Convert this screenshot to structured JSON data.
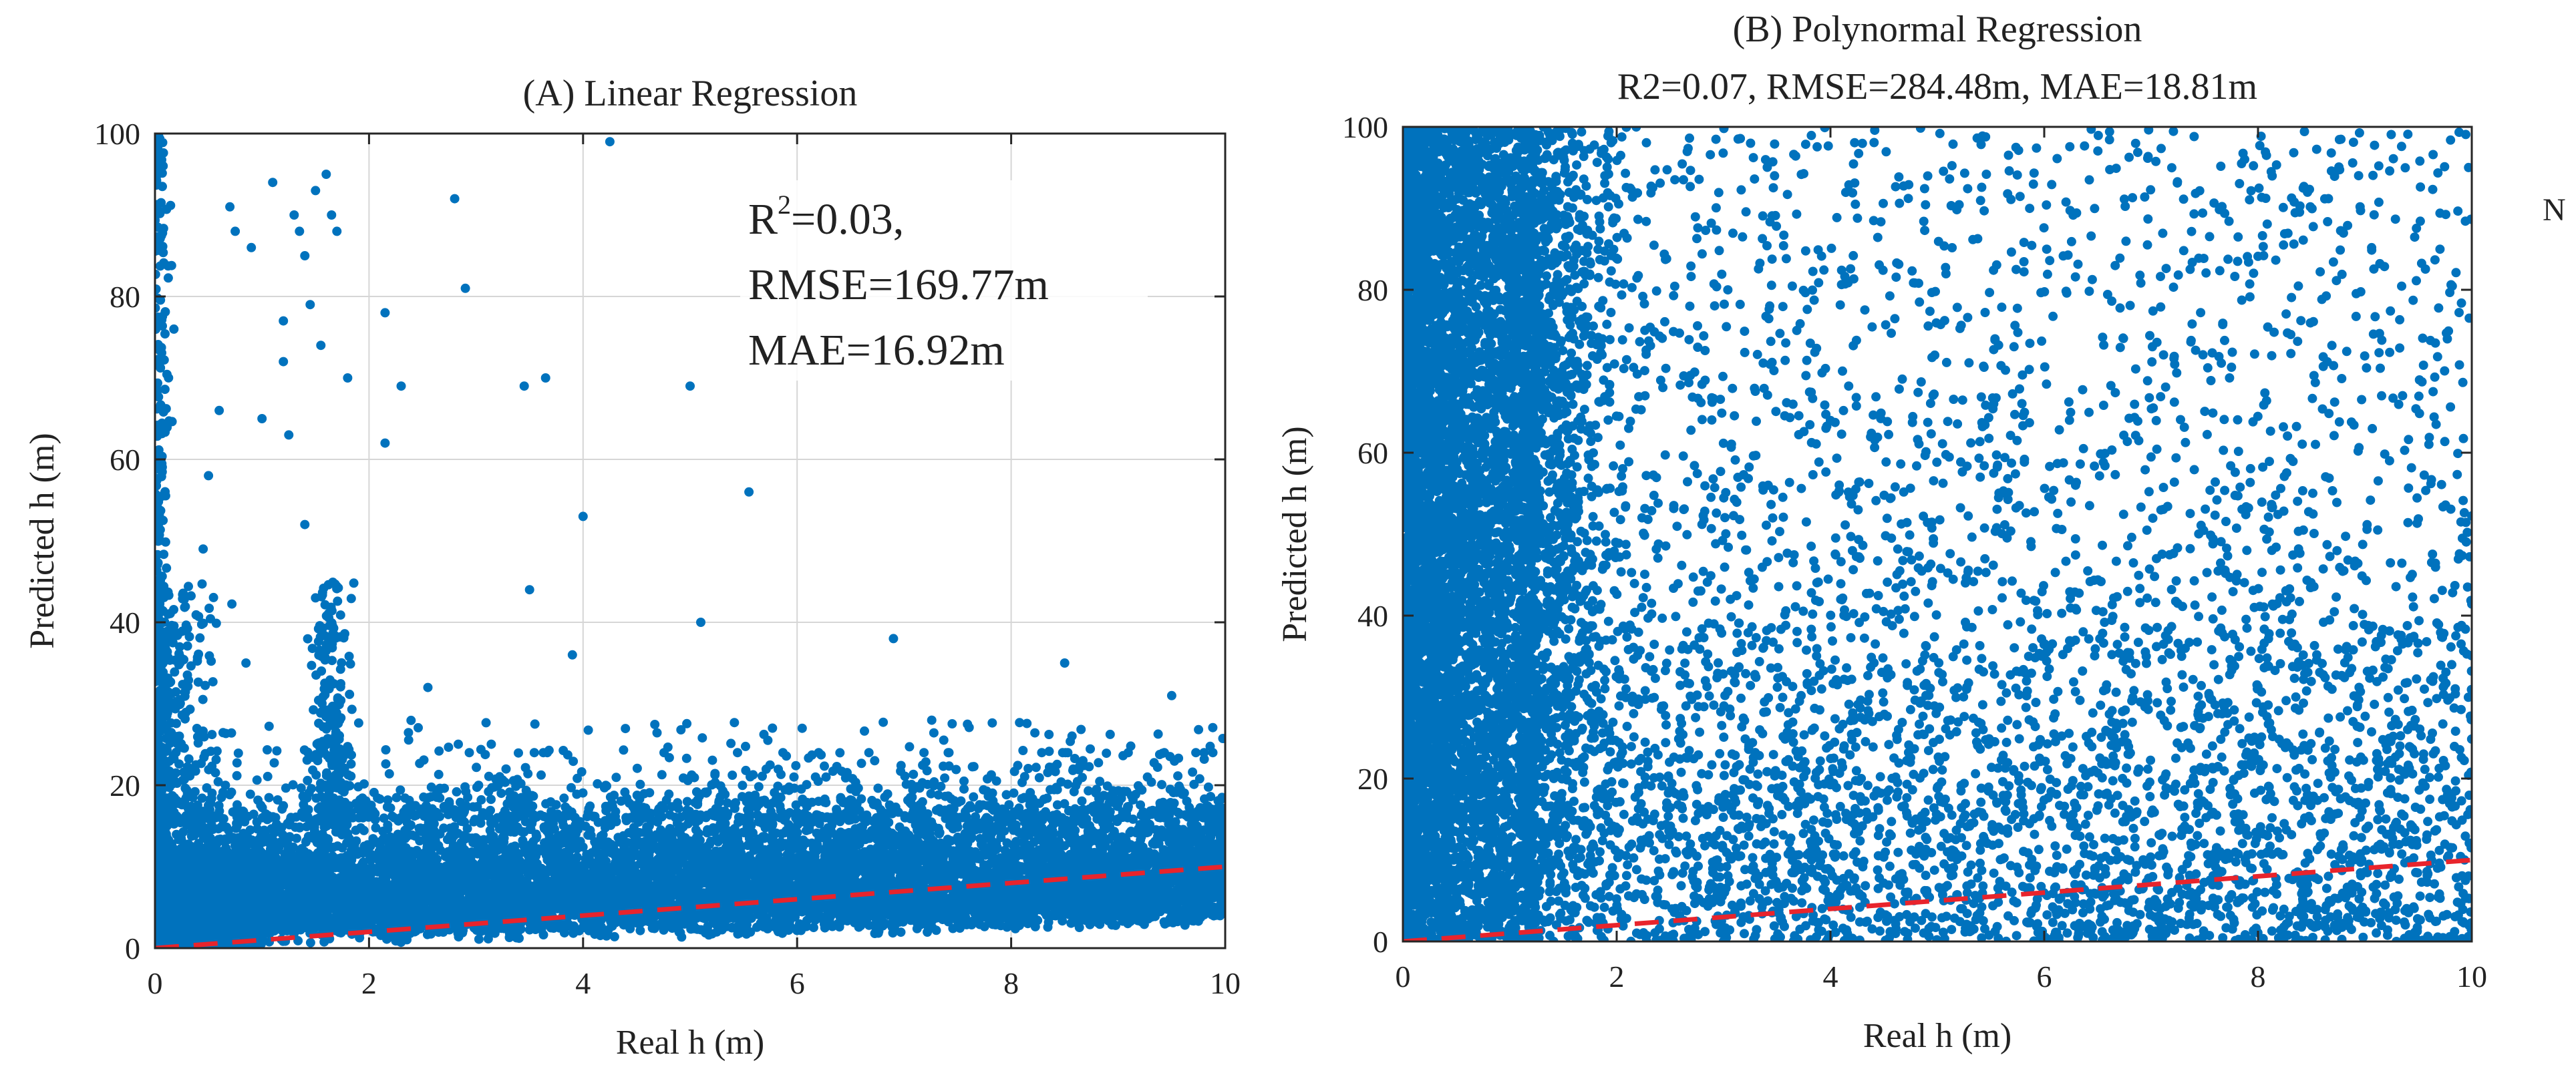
{
  "figure": {
    "edge_glyph": "N"
  },
  "chart_data": [
    {
      "type": "scatter",
      "panel": "A",
      "title": "(A) Linear Regression",
      "subtitle": "",
      "xlabel": "Real h (m)",
      "ylabel": "Predicted h (m)",
      "xlim": [
        0,
        10
      ],
      "ylim": [
        0,
        100
      ],
      "xticks": [
        "0",
        "2",
        "4",
        "6",
        "8",
        "10"
      ],
      "yticks": [
        "0",
        "20",
        "40",
        "60",
        "80",
        "100"
      ],
      "grid": true,
      "annotation": {
        "r2_label": "R",
        "r2_exp": "2",
        "r2_value": "=0.03,",
        "rmse": "RMSE=169.77m",
        "mae": "MAE=16.92m",
        "placement": "top-right"
      },
      "series": [
        {
          "name": "predictions",
          "color": "#0072BD",
          "kind": "scatter"
        },
        {
          "name": "y = x",
          "color": "#E8242C",
          "kind": "dashed-line",
          "x": [
            0,
            10
          ],
          "y": [
            0,
            10
          ]
        }
      ]
    },
    {
      "type": "scatter",
      "panel": "B",
      "title": "(B) Polynormal Regression",
      "subtitle": "R2=0.07, RMSE=284.48m, MAE=18.81m",
      "xlabel": "Real h (m)",
      "ylabel": "Predicted h (m)",
      "xlim": [
        0,
        10
      ],
      "ylim": [
        0,
        100
      ],
      "xticks": [
        "0",
        "2",
        "4",
        "6",
        "8",
        "10"
      ],
      "yticks": [
        "0",
        "20",
        "40",
        "60",
        "80",
        "100"
      ],
      "grid": false,
      "series": [
        {
          "name": "predictions",
          "color": "#0072BD",
          "kind": "scatter"
        },
        {
          "name": "y = x",
          "color": "#E8242C",
          "kind": "dashed-line",
          "x": [
            0,
            10
          ],
          "y": [
            0,
            10
          ]
        }
      ]
    }
  ]
}
